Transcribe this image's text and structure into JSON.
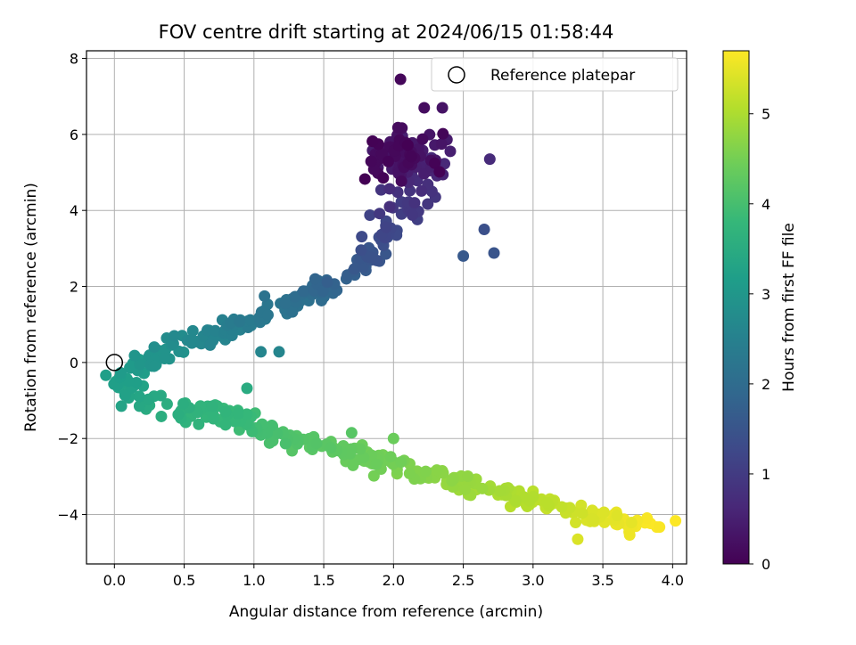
{
  "chart_data": {
    "type": "scatter",
    "title": "FOV centre drift starting at 2024/06/15 01:58:44",
    "xlabel": "Angular distance from reference (arcmin)",
    "ylabel": "Rotation from reference (arcmin)",
    "xlim": [
      -0.2,
      4.1
    ],
    "ylim": [
      -5.3,
      8.2
    ],
    "xticks": [
      0.0,
      0.5,
      1.0,
      1.5,
      2.0,
      2.5,
      3.0,
      3.5,
      4.0
    ],
    "xtick_labels": [
      "0.0",
      "0.5",
      "1.0",
      "1.5",
      "2.0",
      "2.5",
      "3.0",
      "3.5",
      "4.0"
    ],
    "yticks": [
      -4,
      -2,
      0,
      2,
      4,
      6,
      8
    ],
    "ytick_labels": [
      "−4",
      "−2",
      "0",
      "2",
      "4",
      "6",
      "8"
    ],
    "grid": true,
    "colormap": "viridis",
    "colorbar": {
      "label": "Hours from first FF file",
      "range": [
        0,
        5.7
      ],
      "ticks": [
        0,
        1,
        2,
        3,
        4,
        5
      ],
      "tick_labels": [
        "0",
        "1",
        "2",
        "3",
        "4",
        "5"
      ]
    },
    "legend": {
      "placement": "top-right",
      "entries": [
        {
          "label": "Reference platepar",
          "marker": "hollow-circle"
        }
      ]
    },
    "reference_point": {
      "x": 0.0,
      "y": 0.0
    },
    "series": [
      {
        "description": "FF file FOV centre positions, colored by hours from first FF file",
        "anchor_points": [
          {
            "x": 1.9,
            "y": 5.7,
            "hours": 0.0
          },
          {
            "x": 2.1,
            "y": 5.5,
            "hours": 0.3
          },
          {
            "x": 2.2,
            "y": 5.2,
            "hours": 0.6
          },
          {
            "x": 2.1,
            "y": 4.2,
            "hours": 0.9
          },
          {
            "x": 1.95,
            "y": 3.6,
            "hours": 1.2
          },
          {
            "x": 1.85,
            "y": 2.8,
            "hours": 1.5
          },
          {
            "x": 1.6,
            "y": 2.1,
            "hours": 1.8
          },
          {
            "x": 1.3,
            "y": 1.6,
            "hours": 2.1
          },
          {
            "x": 0.9,
            "y": 1.0,
            "hours": 2.4
          },
          {
            "x": 0.55,
            "y": 0.5,
            "hours": 2.7
          },
          {
            "x": 0.25,
            "y": 0.15,
            "hours": 3.0
          },
          {
            "x": 0.05,
            "y": -0.5,
            "hours": 3.2
          },
          {
            "x": 0.3,
            "y": -1.1,
            "hours": 3.5
          },
          {
            "x": 0.8,
            "y": -1.4,
            "hours": 3.8
          },
          {
            "x": 1.3,
            "y": -2.0,
            "hours": 4.1
          },
          {
            "x": 1.8,
            "y": -2.5,
            "hours": 4.4
          },
          {
            "x": 2.3,
            "y": -3.0,
            "hours": 4.7
          },
          {
            "x": 2.8,
            "y": -3.5,
            "hours": 5.0
          },
          {
            "x": 3.3,
            "y": -3.9,
            "hours": 5.3
          },
          {
            "x": 3.85,
            "y": -4.3,
            "hours": 5.7
          }
        ],
        "outliers": [
          {
            "x": 2.05,
            "y": 7.45,
            "hours": 0.1
          },
          {
            "x": 2.22,
            "y": 6.7,
            "hours": 0.2
          },
          {
            "x": 2.35,
            "y": 6.7,
            "hours": 0.3
          },
          {
            "x": 2.69,
            "y": 5.35,
            "hours": 0.7
          },
          {
            "x": 2.3,
            "y": 4.35,
            "hours": 0.9
          },
          {
            "x": 2.72,
            "y": 2.88,
            "hours": 1.5
          },
          {
            "x": 2.65,
            "y": 3.5,
            "hours": 1.4
          },
          {
            "x": 2.5,
            "y": 2.8,
            "hours": 1.6
          },
          {
            "x": 1.05,
            "y": 0.28,
            "hours": 2.6
          },
          {
            "x": 1.18,
            "y": 0.28,
            "hours": 2.6
          },
          {
            "x": 0.95,
            "y": -0.68,
            "hours": 3.5
          },
          {
            "x": 2.0,
            "y": -2.0,
            "hours": 4.4
          },
          {
            "x": 1.7,
            "y": -1.85,
            "hours": 4.2
          },
          {
            "x": 3.32,
            "y": -4.65,
            "hours": 5.4
          },
          {
            "x": 0.05,
            "y": -1.15,
            "hours": 3.3
          }
        ]
      }
    ]
  }
}
